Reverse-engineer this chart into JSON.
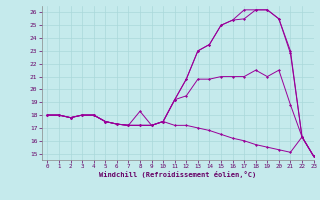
{
  "xlabel": "Windchill (Refroidissement éolien,°C)",
  "xlim": [
    -0.5,
    23
  ],
  "ylim": [
    14.5,
    26.5
  ],
  "yticks": [
    15,
    16,
    17,
    18,
    19,
    20,
    21,
    22,
    23,
    24,
    25,
    26
  ],
  "xticks": [
    0,
    1,
    2,
    3,
    4,
    5,
    6,
    7,
    8,
    9,
    10,
    11,
    12,
    13,
    14,
    15,
    16,
    17,
    18,
    19,
    20,
    21,
    22,
    23
  ],
  "bg_color": "#c5eaec",
  "line_color": "#990099",
  "grid_color": "#aad8da",
  "series": [
    {
      "x": [
        0,
        1,
        2,
        3,
        4,
        5,
        6,
        7,
        8,
        9,
        10,
        11,
        12,
        13,
        14,
        15,
        16,
        17,
        18,
        19,
        20,
        21,
        22,
        23
      ],
      "y": [
        18,
        18,
        17.8,
        18,
        18,
        17.5,
        17.3,
        17.2,
        17.2,
        17.2,
        17.5,
        19.2,
        20.8,
        23.0,
        23.5,
        25.0,
        25.4,
        25.5,
        26.2,
        26.2,
        25.5,
        22.8,
        16.3,
        14.8
      ]
    },
    {
      "x": [
        0,
        1,
        2,
        3,
        4,
        5,
        6,
        7,
        8,
        9,
        10,
        11,
        12,
        13,
        14,
        15,
        16,
        17,
        18,
        19,
        20,
        21,
        22,
        23
      ],
      "y": [
        18,
        18,
        17.8,
        18,
        18,
        17.5,
        17.3,
        17.2,
        17.2,
        17.2,
        17.5,
        19.2,
        20.8,
        23.0,
        23.5,
        25.0,
        25.4,
        26.2,
        26.2,
        26.2,
        25.5,
        23.0,
        16.3,
        14.8
      ]
    },
    {
      "x": [
        0,
        1,
        2,
        3,
        4,
        5,
        6,
        7,
        8,
        9,
        10,
        11,
        12,
        13,
        14,
        15,
        16,
        17,
        18,
        19,
        20,
        21,
        22,
        23
      ],
      "y": [
        18,
        18,
        17.8,
        18,
        18,
        17.5,
        17.3,
        17.2,
        17.2,
        17.2,
        17.5,
        17.2,
        17.2,
        17.0,
        16.8,
        16.5,
        16.2,
        16.0,
        15.7,
        15.5,
        15.3,
        15.1,
        16.3,
        14.8
      ]
    },
    {
      "x": [
        0,
        1,
        2,
        3,
        4,
        5,
        6,
        7,
        8,
        9,
        10,
        11,
        12,
        13,
        14,
        15,
        16,
        17,
        18,
        19,
        20,
        21,
        22,
        23
      ],
      "y": [
        18,
        18,
        17.8,
        18,
        18,
        17.5,
        17.3,
        17.2,
        18.3,
        17.2,
        17.5,
        19.2,
        19.5,
        20.8,
        20.8,
        21.0,
        21.0,
        21.0,
        21.5,
        21.0,
        21.5,
        18.8,
        16.3,
        14.8
      ]
    }
  ]
}
